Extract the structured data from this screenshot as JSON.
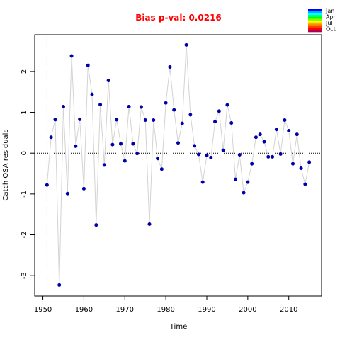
{
  "chart_data": {
    "type": "scatter",
    "title": "Bias p-val: 0.0216",
    "title_color": "#ff0000",
    "xlabel": "Time",
    "ylabel": "Catch OSA residuals",
    "xlim": [
      1948,
      2018
    ],
    "ylim": [
      -3.5,
      2.9
    ],
    "x_ticks": [
      1950,
      1960,
      1970,
      1980,
      1990,
      2000,
      2010
    ],
    "y_ticks": [
      -3,
      -2,
      -1,
      0,
      1,
      2
    ],
    "reference_line_y": 0,
    "start_line_x": 1951,
    "point_color": "#0000aa",
    "line_color": "#d3d3d3",
    "legend": {
      "position": "top-right",
      "labels": [
        "Jan",
        "Apr",
        "Jul",
        "Oct"
      ],
      "colors": [
        "#0000ff",
        "#00aaff",
        "#00ffff",
        "#00ff80",
        "#00ff00",
        "#80ff00",
        "#ffff00",
        "#ffaa00",
        "#ff7f00",
        "#ff3f00",
        "#ff0000",
        "#aa0055"
      ]
    },
    "series": [
      {
        "x": [
          1951,
          1952,
          1953,
          1954,
          1955,
          1956,
          1957,
          1958,
          1959,
          1960,
          1961,
          1962,
          1963,
          1964,
          1965,
          1966,
          1967,
          1968,
          1969,
          1970,
          1971,
          1972,
          1973,
          1974,
          1975,
          1976,
          1977,
          1978,
          1979,
          1980,
          1981,
          1982,
          1983,
          1984,
          1985,
          1986,
          1987,
          1988,
          1989,
          1990,
          1991,
          1992,
          1993,
          1994,
          1995,
          1996,
          1997,
          1998,
          1999,
          2000,
          2001,
          2002,
          2003,
          2004,
          2005,
          2006,
          2007,
          2008,
          2009,
          2010,
          2011,
          2012,
          2013,
          2014,
          2015
        ],
        "y": [
          -0.78,
          0.39,
          0.82,
          -3.23,
          1.14,
          -0.99,
          2.38,
          0.17,
          0.83,
          -0.87,
          2.15,
          1.44,
          -1.76,
          1.19,
          -0.29,
          1.78,
          0.21,
          0.82,
          0.23,
          -0.19,
          1.14,
          0.23,
          -0.01,
          1.13,
          0.81,
          -1.74,
          0.81,
          -0.13,
          -0.39,
          1.23,
          2.11,
          1.06,
          0.25,
          0.73,
          2.65,
          0.94,
          0.18,
          -0.03,
          -0.71,
          -0.05,
          -0.11,
          0.77,
          1.03,
          0.07,
          1.18,
          0.74,
          -0.64,
          -0.04,
          -0.97,
          -0.71,
          -0.26,
          0.39,
          0.46,
          0.28,
          -0.09,
          -0.09,
          0.58,
          -0.02,
          0.81,
          0.55,
          -0.26,
          0.46,
          -0.37,
          -0.76,
          -0.22
        ]
      }
    ]
  }
}
